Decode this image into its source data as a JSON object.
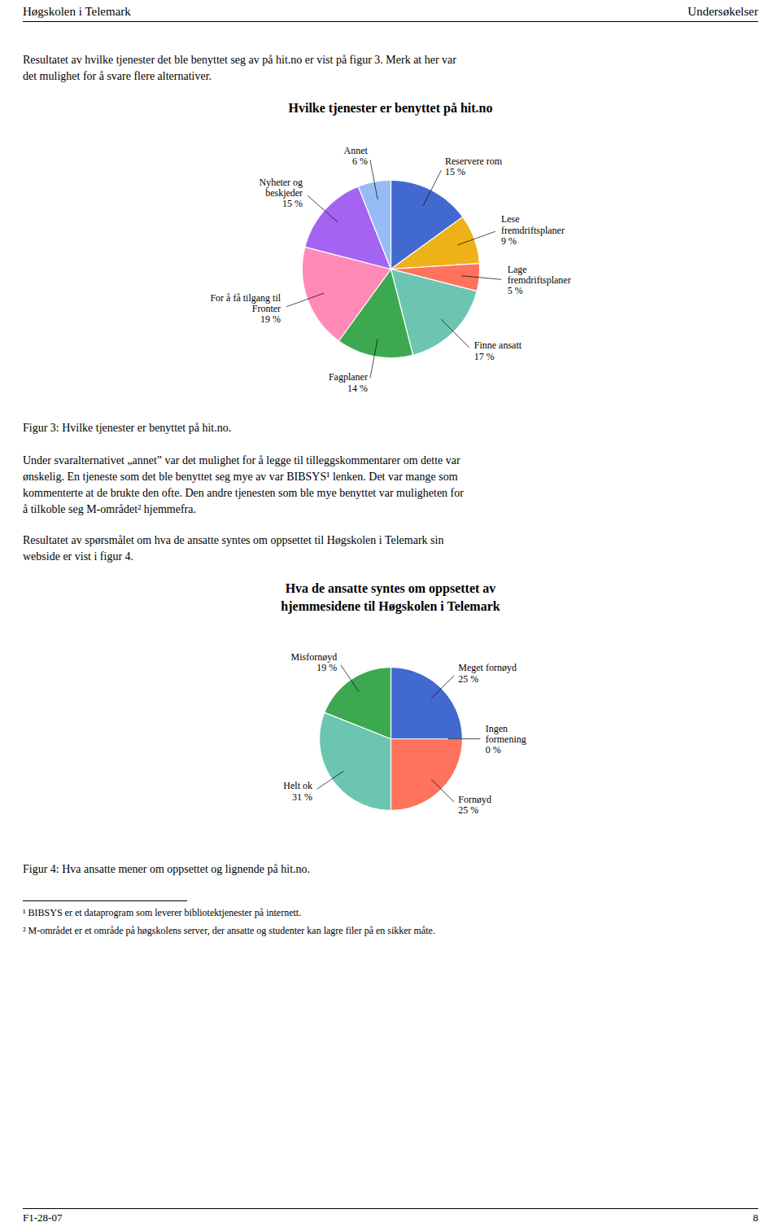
{
  "chart_data": [
    {
      "type": "pie",
      "title": "Hvilke tjenester er benyttet på hit.no",
      "categories": [
        "Reservere rom",
        "Lese\nfremdriftsplaner",
        "Lage\nfremdriftsplaner",
        "Finne ansatt",
        "Fagplaner",
        "For å få tilgang til\nFronter",
        "Nyheter og\nbeskjeder",
        "Annet"
      ],
      "values": [
        15,
        9,
        5,
        17,
        14,
        19,
        15,
        6
      ],
      "value_labels": [
        "15 %",
        "9 %",
        "5 %",
        "17 %",
        "14 %",
        "19 %",
        "15 %",
        "6 %"
      ],
      "data_labels": true,
      "caption": "Figur 3: Hvilke tjenester er benyttet på hit.no.",
      "annotations": [
        "Høgskolen i Telemark",
        "Undersøkelser",
        "Resultatet av hvilke tjenester det ble benyttet seg av på hit.no er vist på figur 3. Merk at her var\ndet mulighet for å svare flere alternativer."
      ]
    },
    {
      "type": "pie",
      "title": "Hva de ansatte syntes om oppsettet av\nhjemmesidene til Høgskolen i Telemark",
      "categories": [
        "Meget fornøyd",
        "Ingen\nformening",
        "Fornøyd",
        "Helt ok",
        "Misfornøyd"
      ],
      "values": [
        25,
        0,
        25,
        31,
        19
      ],
      "value_labels": [
        "25 %",
        "0 %",
        "25 %",
        "31 %",
        "19 %"
      ],
      "data_labels": true,
      "caption": "Figur 4: Hva ansatte mener om oppsettet og lignende på hit.no.",
      "annotations": [
        "Under svaralternativet „annet” var det mulighet for å legge til tilleggskommentarer om dette var\nønskelig. En tjeneste som det ble benyttet seg mye av var BIBSYS¹ lenken. Det var mange som\nkommenterte at de brukte den ofte. Den andre tjenesten som ble mye benyttet var muligheten for\nå tilkoble seg M-området² hjemmefra.",
        "Resultatet av spørsmålet om hva de ansatte syntes om oppsettet til Høgskolen i Telemark sin\nwebside er vist i figur 4.",
        "¹ BIBSYS er et dataprogram som leverer bibliotektjenester på internett.",
        "² M-området er et område på høgskolens server, der ansatte og studenter kan lagre filer på en sikker måte.",
        "F1-28-07",
        "8"
      ]
    }
  ]
}
